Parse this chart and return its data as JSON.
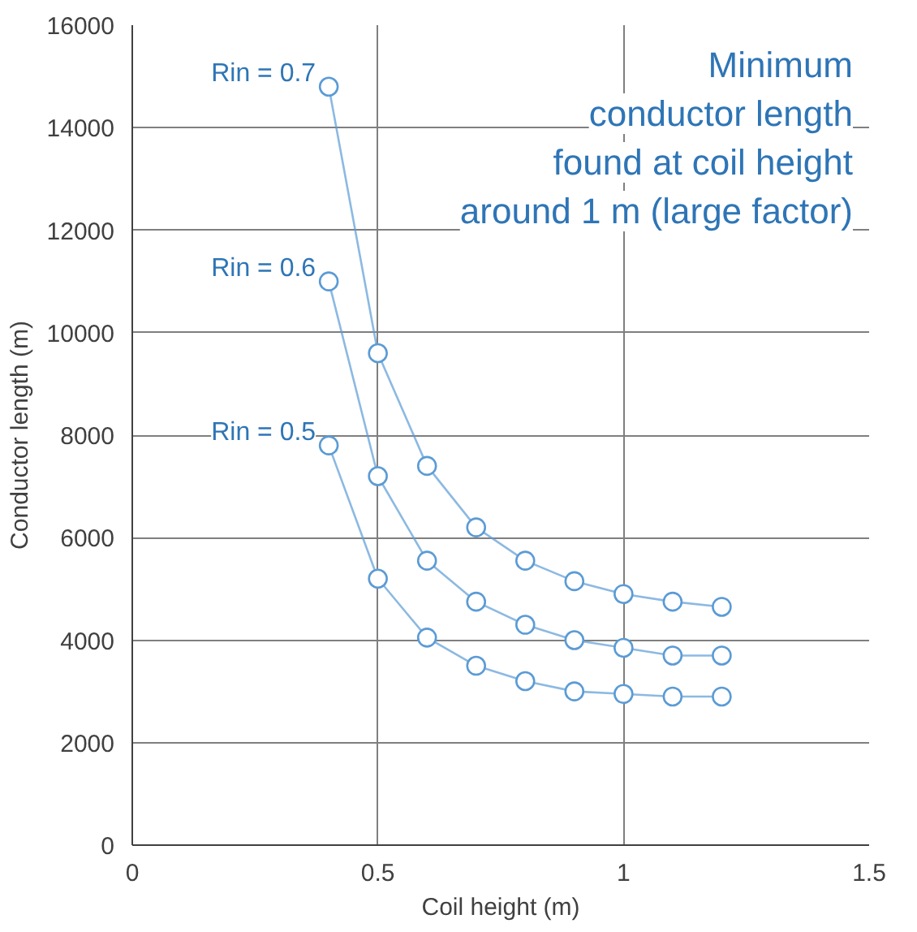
{
  "chart_data": {
    "type": "line",
    "xlabel": "Coil height (m)",
    "ylabel": "Conductor length (m)",
    "x": [
      0.4,
      0.5,
      0.6,
      0.7,
      0.8,
      0.9,
      1.0,
      1.1,
      1.2
    ],
    "series": [
      {
        "name": "Rin = 0.7",
        "color": "#5b9bd5",
        "values": [
          14800,
          9600,
          7400,
          6200,
          5550,
          5150,
          4900,
          4750,
          4650
        ]
      },
      {
        "name": "Rin = 0.6",
        "color": "#5b9bd5",
        "values": [
          11000,
          7200,
          5550,
          4750,
          4300,
          4000,
          3850,
          3700,
          3700
        ]
      },
      {
        "name": "Rin = 0.5",
        "color": "#5b9bd5",
        "values": [
          7800,
          5200,
          4050,
          3500,
          3200,
          3000,
          2950,
          2900,
          2900
        ]
      }
    ],
    "xlim": [
      0,
      1.5
    ],
    "xticks": [
      0,
      0.5,
      1,
      1.5
    ],
    "ylim": [
      0,
      16000
    ],
    "yticks": [
      0,
      2000,
      4000,
      6000,
      8000,
      10000,
      12000,
      14000,
      16000
    ],
    "grid": true,
    "legend": false,
    "marker": "circle",
    "line_style": "solid",
    "annotations": [
      "Minimum\nconductor length\nfound at coil height\naround 1 m (large factor)"
    ]
  }
}
